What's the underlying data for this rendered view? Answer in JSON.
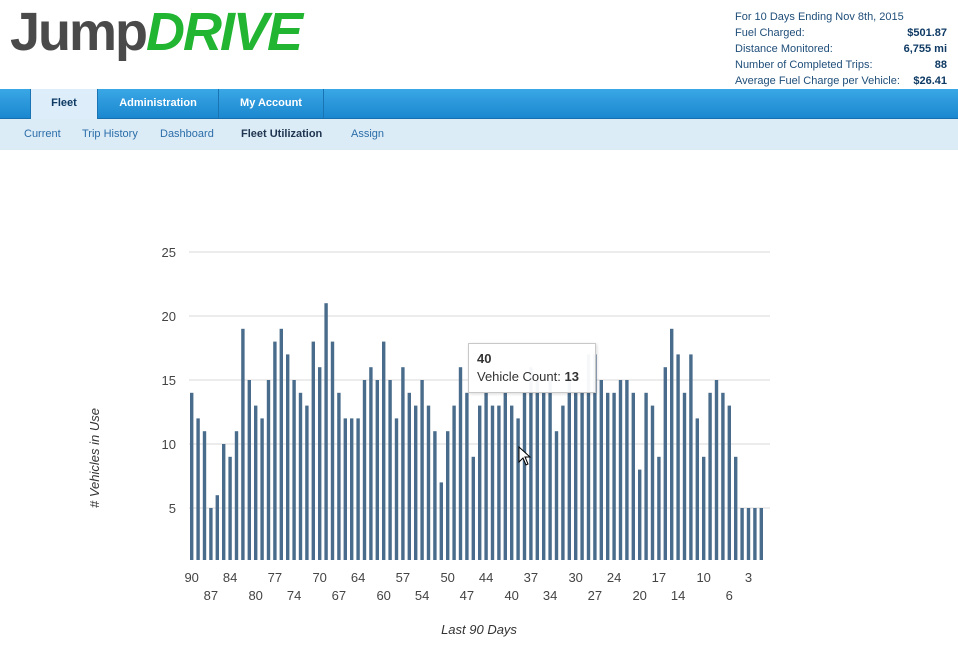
{
  "brand": {
    "part1": "Jump",
    "part2": "DRIVE",
    "color_dark": "#4a4a4a",
    "color_green": "#22b532"
  },
  "summary": {
    "heading": "For 10 Days Ending Nov 8th, 2015",
    "rows": [
      {
        "label": "Fuel Charged:",
        "value": "$501.87"
      },
      {
        "label": "Distance Monitored:",
        "value": "6,755 mi"
      },
      {
        "label": "Number of Completed Trips:",
        "value": "88"
      },
      {
        "label": "Average Fuel Charge per Vehicle:",
        "value": "$26.41"
      }
    ]
  },
  "mainnav": {
    "tabs": [
      "Fleet",
      "Administration",
      "My Account"
    ],
    "active": "Fleet"
  },
  "subnav": {
    "items": [
      "Current",
      "Trip History",
      "Dashboard",
      "Fleet Utilization",
      "Assign"
    ],
    "active": "Fleet Utilization"
  },
  "tooltip": {
    "title": "40",
    "label": "Vehicle Count:",
    "value": "13"
  },
  "chart_data": {
    "type": "bar",
    "xlabel": "Last 90 Days",
    "ylabel": "# Vehicles in Use",
    "ylim": [
      0,
      25
    ],
    "yticks": [
      5,
      10,
      15,
      20,
      25
    ],
    "grid": true,
    "bar_color": "#4a6c8c",
    "categories": [
      90,
      89,
      88,
      87,
      86,
      85,
      84,
      83,
      82,
      81,
      80,
      79,
      78,
      77,
      76,
      75,
      74,
      73,
      72,
      71,
      70,
      69,
      68,
      67,
      66,
      65,
      64,
      63,
      62,
      61,
      60,
      59,
      58,
      57,
      56,
      55,
      54,
      53,
      52,
      51,
      50,
      49,
      48,
      47,
      46,
      45,
      44,
      43,
      42,
      41,
      40,
      39,
      38,
      37,
      36,
      35,
      34,
      33,
      32,
      31,
      30,
      29,
      28,
      27,
      26,
      25,
      24,
      23,
      22,
      21,
      20,
      19,
      18,
      17,
      16,
      15,
      14,
      13,
      12,
      11,
      10,
      9,
      8,
      7,
      6,
      5,
      4,
      3,
      2,
      1
    ],
    "xtick_labels_top": [
      "90",
      "84",
      "77",
      "70",
      "64",
      "57",
      "50",
      "44",
      "37",
      "30",
      "24",
      "17",
      "10",
      "3"
    ],
    "xtick_labels_bottom": [
      "87",
      "80",
      "74",
      "67",
      "60",
      "54",
      "47",
      "40",
      "34",
      "27",
      "20",
      "14",
      "6"
    ],
    "values": [
      14,
      12,
      11,
      5,
      6,
      10,
      9,
      11,
      19,
      15,
      13,
      12,
      15,
      18,
      19,
      17,
      15,
      14,
      13,
      18,
      16,
      21,
      18,
      14,
      12,
      12,
      12,
      15,
      16,
      15,
      18,
      15,
      12,
      16,
      14,
      13,
      15,
      13,
      11,
      7,
      11,
      13,
      16,
      14,
      9,
      13,
      14,
      13,
      13,
      14,
      13,
      12,
      14,
      16,
      15,
      14,
      15,
      11,
      13,
      15,
      14,
      14,
      17,
      17,
      15,
      14,
      14,
      15,
      15,
      14,
      8,
      14,
      13,
      9,
      16,
      19,
      17,
      14,
      17,
      12,
      9,
      14,
      15,
      14,
      13,
      9,
      5,
      5,
      5,
      5
    ]
  }
}
